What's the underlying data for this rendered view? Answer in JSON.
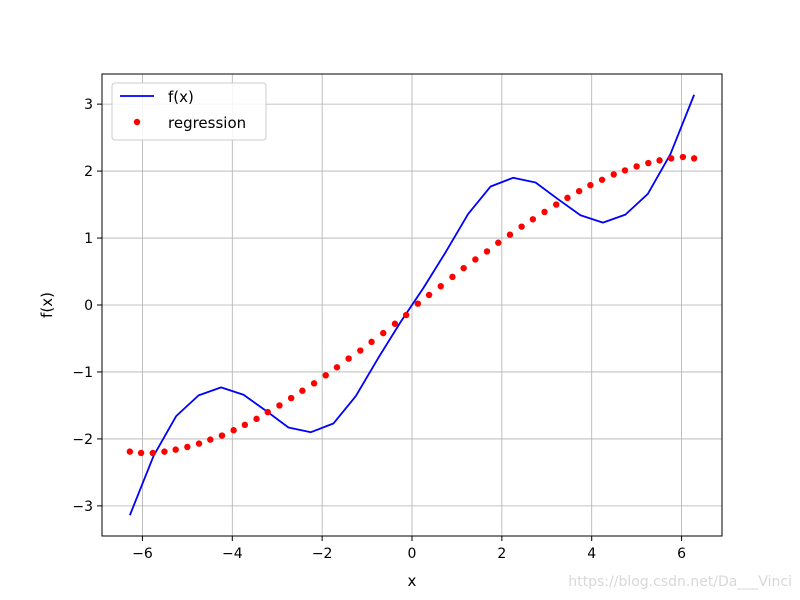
{
  "chart_data": {
    "type": "line",
    "title": "",
    "xlabel": "x",
    "ylabel": "f(x)",
    "xlim": [
      -6.9,
      6.9
    ],
    "ylim": [
      -3.45,
      3.45
    ],
    "xticks": [
      -6,
      -4,
      -2,
      0,
      2,
      4,
      6
    ],
    "xtick_labels": [
      "−6",
      "−4",
      "−2",
      "0",
      "2",
      "4",
      "6"
    ],
    "yticks": [
      -3,
      -2,
      -1,
      0,
      1,
      2,
      3
    ],
    "ytick_labels": [
      "−3",
      "−2",
      "−1",
      "0",
      "1",
      "2",
      "3"
    ],
    "grid": true,
    "legend_position": "upper-left",
    "series": [
      {
        "name": "f(x)",
        "style": "line",
        "color": "#0000ff",
        "x": [
          -6.28,
          -5.75,
          -5.25,
          -4.75,
          -4.25,
          -3.75,
          -3.25,
          -2.75,
          -2.25,
          -1.75,
          -1.25,
          -0.75,
          -0.25,
          0,
          0.25,
          0.75,
          1.25,
          1.75,
          2.25,
          2.75,
          3.25,
          3.75,
          4.25,
          4.75,
          5.25,
          5.75,
          6.28
        ],
        "y": [
          -3.14,
          -2.25,
          -1.66,
          -1.35,
          -1.23,
          -1.34,
          -1.58,
          -1.83,
          -1.9,
          -1.77,
          -1.36,
          -0.79,
          -0.25,
          0,
          0.25,
          0.79,
          1.36,
          1.77,
          1.9,
          1.83,
          1.58,
          1.34,
          1.23,
          1.35,
          1.66,
          2.25,
          3.14
        ]
      },
      {
        "name": "regression",
        "style": "scatter",
        "color": "#ff0000",
        "x": [
          -6.28,
          -6.03,
          -5.77,
          -5.51,
          -5.26,
          -5.0,
          -4.74,
          -4.49,
          -4.23,
          -3.97,
          -3.72,
          -3.46,
          -3.21,
          -2.95,
          -2.69,
          -2.44,
          -2.18,
          -1.92,
          -1.67,
          -1.41,
          -1.15,
          -0.9,
          -0.64,
          -0.38,
          -0.13,
          0.13,
          0.38,
          0.64,
          0.9,
          1.15,
          1.41,
          1.67,
          1.92,
          2.18,
          2.44,
          2.69,
          2.95,
          3.21,
          3.46,
          3.72,
          3.97,
          4.23,
          4.49,
          4.74,
          5.0,
          5.26,
          5.51,
          5.77,
          6.03,
          6.28
        ],
        "y": [
          -2.19,
          -2.21,
          -2.21,
          -2.19,
          -2.16,
          -2.12,
          -2.07,
          -2.01,
          -1.95,
          -1.87,
          -1.79,
          -1.7,
          -1.6,
          -1.5,
          -1.39,
          -1.28,
          -1.17,
          -1.05,
          -0.93,
          -0.8,
          -0.68,
          -0.55,
          -0.42,
          -0.28,
          -0.15,
          0.02,
          0.15,
          0.28,
          0.42,
          0.55,
          0.68,
          0.8,
          0.93,
          1.05,
          1.17,
          1.28,
          1.39,
          1.5,
          1.6,
          1.7,
          1.79,
          1.87,
          1.95,
          2.01,
          2.07,
          2.12,
          2.16,
          2.19,
          2.21,
          2.19
        ]
      }
    ]
  },
  "watermark": "https://blog.csdn.net/Da___Vinci"
}
